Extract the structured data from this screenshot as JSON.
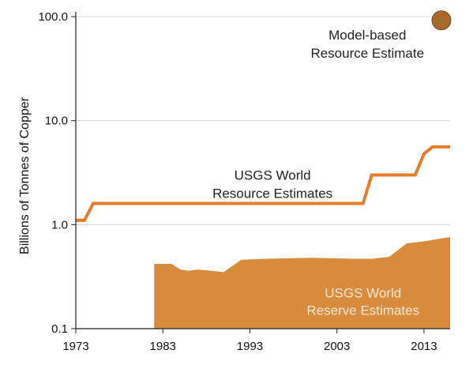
{
  "chart_data": {
    "type": "line",
    "y_scale": "log",
    "ylim": [
      0.1,
      100
    ],
    "xlim": [
      1973,
      2016
    ],
    "ylabel": "Billions of Tonnes of Copper",
    "x_ticks": [
      "1973",
      "1983",
      "1993",
      "2003",
      "2013"
    ],
    "y_ticks": [
      "0.1",
      "1.0",
      "10.0",
      "100.0"
    ],
    "grid": "horizontal gridlines at major ticks",
    "series": [
      {
        "kind": "line",
        "color": "#e87b2a",
        "label_lines": [
          "USGS World",
          "Resource Estimates"
        ],
        "points": [
          [
            1973,
            1.1
          ],
          [
            1974,
            1.1
          ],
          [
            1975,
            1.6
          ],
          [
            2006,
            1.6
          ],
          [
            2007,
            3.0
          ],
          [
            2012,
            3.0
          ],
          [
            2013,
            4.8
          ],
          [
            2014,
            5.6
          ],
          [
            2016,
            5.6
          ]
        ]
      },
      {
        "kind": "area",
        "color": "#d88a3d",
        "label_lines": [
          "USGS World",
          "Reserve Estimates"
        ],
        "points": [
          [
            1982,
            0.42
          ],
          [
            1984,
            0.42
          ],
          [
            1985,
            0.37
          ],
          [
            1986,
            0.36
          ],
          [
            1987,
            0.37
          ],
          [
            1990,
            0.35
          ],
          [
            1992,
            0.46
          ],
          [
            1995,
            0.47
          ],
          [
            2000,
            0.48
          ],
          [
            2005,
            0.47
          ],
          [
            2007,
            0.47
          ],
          [
            2009,
            0.49
          ],
          [
            2011,
            0.66
          ],
          [
            2013,
            0.69
          ],
          [
            2016,
            0.76
          ]
        ]
      },
      {
        "kind": "point",
        "color": "#a86a2c",
        "label_lines": [
          "Model-based",
          "Resource Estimate"
        ],
        "points": [
          [
            2015,
            92
          ]
        ]
      }
    ]
  }
}
